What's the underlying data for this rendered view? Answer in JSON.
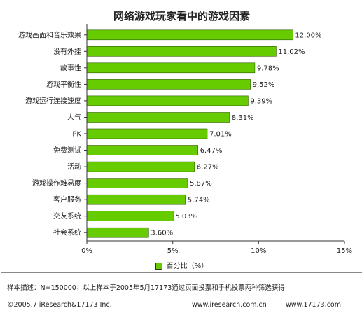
{
  "footer": {
    "note": "样本描述：N=150000；以上样本于2005年5月17173通过页面投票和手机投票两种筛选获得",
    "copyright": "©2005.7 iResearch&17173 Inc.",
    "site1": "www.iresearch.com.cn",
    "site2": "www.17173.com"
  },
  "chart_data": {
    "type": "bar",
    "orientation": "horizontal",
    "title": "网络游戏玩家看中的游戏因素",
    "categories": [
      "游戏画面和音乐效果",
      "没有外挂",
      "故事性",
      "游戏平衡性",
      "游戏运行连接速度",
      "人气",
      "PK",
      "免费测试",
      "活动",
      "游戏操作难易度",
      "客户服务",
      "交友系统",
      "社会系统"
    ],
    "values": [
      12.0,
      11.02,
      9.78,
      9.52,
      9.39,
      8.31,
      7.01,
      6.47,
      6.27,
      5.87,
      5.74,
      5.03,
      3.6
    ],
    "value_labels": [
      "12.00%",
      "11.02%",
      "9.78%",
      "9.52%",
      "9.39%",
      "8.31%",
      "7.01%",
      "6.47%",
      "6.27%",
      "5.87%",
      "5.74%",
      "5.03%",
      "3.60%"
    ],
    "series": [
      {
        "name": "百分比（%）",
        "values": [
          12.0,
          11.02,
          9.78,
          9.52,
          9.39,
          8.31,
          7.01,
          6.47,
          6.27,
          5.87,
          5.74,
          5.03,
          3.6
        ]
      }
    ],
    "xlim": [
      0,
      15
    ],
    "x_ticks": [
      0,
      5,
      10,
      15
    ],
    "x_tick_labels": [
      "0%",
      "5%",
      "10%",
      "15%"
    ],
    "grid": false,
    "legend_position": "bottom",
    "bar_color": "#66cc00"
  }
}
